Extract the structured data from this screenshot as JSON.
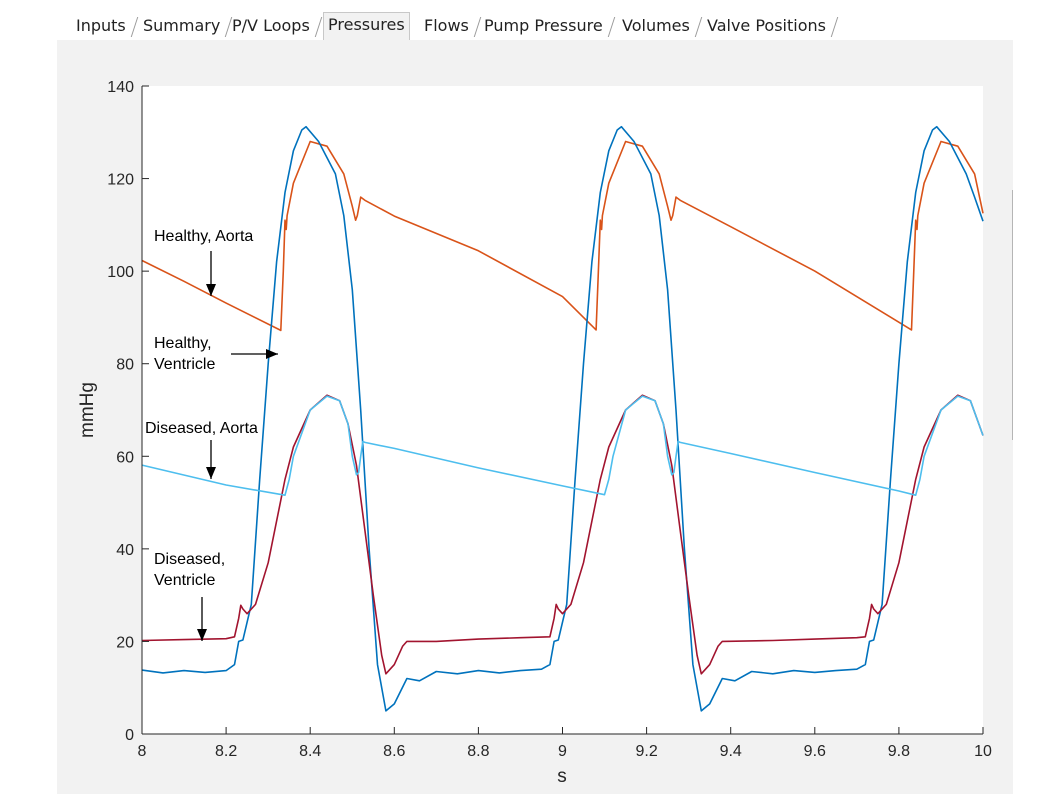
{
  "tabs": [
    {
      "label": "Inputs",
      "active": false
    },
    {
      "label": "Summary",
      "active": false
    },
    {
      "label": "P/V Loops",
      "active": false
    },
    {
      "label": "Pressures",
      "active": true
    },
    {
      "label": "Flows",
      "active": false
    },
    {
      "label": "Pump Pressure",
      "active": false
    },
    {
      "label": "Volumes",
      "active": false
    },
    {
      "label": "Valve Positions",
      "active": false
    }
  ],
  "chart_data": {
    "type": "line",
    "xlabel": "s",
    "ylabel": "mmHg",
    "xlim": [
      8,
      10
    ],
    "ylim": [
      0,
      140
    ],
    "xticks": [
      8,
      8.2,
      8.4,
      8.6,
      8.8,
      9,
      9.2,
      9.4,
      9.6,
      9.8,
      10
    ],
    "xtick_labels": [
      "8",
      "8.2",
      "8.4",
      "8.6",
      "8.8",
      "9",
      "9.2",
      "9.4",
      "9.6",
      "9.8",
      "10"
    ],
    "yticks": [
      0,
      20,
      40,
      60,
      80,
      100,
      120,
      140
    ],
    "ytick_labels": [
      "0",
      "20",
      "40",
      "60",
      "80",
      "100",
      "120",
      "140"
    ],
    "grid": false,
    "series": [
      {
        "key": "healthy_aorta",
        "color": "#d95319",
        "points": [
          [
            8.0,
            102.3
          ],
          [
            8.1,
            97.8
          ],
          [
            8.2,
            93.1
          ],
          [
            8.33,
            87.2
          ],
          [
            8.336,
            100
          ],
          [
            8.34,
            111
          ],
          [
            8.343,
            109
          ],
          [
            8.345,
            112
          ],
          [
            8.36,
            119
          ],
          [
            8.4,
            128
          ],
          [
            8.44,
            127
          ],
          [
            8.48,
            121
          ],
          [
            8.5,
            114
          ],
          [
            8.508,
            111
          ],
          [
            8.512,
            112
          ],
          [
            8.52,
            116
          ],
          [
            8.53,
            115.3
          ],
          [
            8.6,
            111.9
          ],
          [
            8.8,
            104.4
          ],
          [
            9.0,
            94.5
          ],
          [
            9.08,
            87.3
          ],
          [
            9.085,
            99
          ],
          [
            9.09,
            111
          ],
          [
            9.093,
            109
          ],
          [
            9.095,
            112
          ],
          [
            9.11,
            119
          ],
          [
            9.15,
            128
          ],
          [
            9.19,
            127
          ],
          [
            9.23,
            121
          ],
          [
            9.25,
            114
          ],
          [
            9.258,
            111
          ],
          [
            9.262,
            112
          ],
          [
            9.27,
            116
          ],
          [
            9.28,
            115.3
          ],
          [
            9.4,
            109.6
          ],
          [
            9.6,
            100
          ],
          [
            9.83,
            87.3
          ],
          [
            9.835,
            99
          ],
          [
            9.84,
            111
          ],
          [
            9.843,
            109
          ],
          [
            9.845,
            112
          ],
          [
            9.86,
            119
          ],
          [
            9.9,
            128
          ],
          [
            9.94,
            127
          ],
          [
            9.98,
            121
          ],
          [
            10.0,
            112.5
          ]
        ]
      },
      {
        "key": "healthy_ventricle",
        "color": "#0072bd",
        "points": [
          [
            8.0,
            13.8
          ],
          [
            8.05,
            13.2
          ],
          [
            8.1,
            13.7
          ],
          [
            8.15,
            13.3
          ],
          [
            8.2,
            13.7
          ],
          [
            8.22,
            15
          ],
          [
            8.23,
            20
          ],
          [
            8.24,
            20.3
          ],
          [
            8.26,
            28
          ],
          [
            8.28,
            55
          ],
          [
            8.3,
            80
          ],
          [
            8.32,
            102
          ],
          [
            8.34,
            117
          ],
          [
            8.36,
            126
          ],
          [
            8.38,
            130.5
          ],
          [
            8.39,
            131.2
          ],
          [
            8.42,
            128
          ],
          [
            8.46,
            121
          ],
          [
            8.48,
            112
          ],
          [
            8.5,
            96
          ],
          [
            8.52,
            70
          ],
          [
            8.54,
            40
          ],
          [
            8.56,
            15
          ],
          [
            8.58,
            5
          ],
          [
            8.6,
            6.5
          ],
          [
            8.63,
            12
          ],
          [
            8.66,
            11.5
          ],
          [
            8.7,
            13.5
          ],
          [
            8.75,
            13
          ],
          [
            8.8,
            13.7
          ],
          [
            8.85,
            13.2
          ],
          [
            8.9,
            13.7
          ],
          [
            8.95,
            14
          ],
          [
            8.97,
            15
          ],
          [
            8.98,
            20
          ],
          [
            8.99,
            20.3
          ],
          [
            9.01,
            28
          ],
          [
            9.03,
            55
          ],
          [
            9.05,
            80
          ],
          [
            9.07,
            102
          ],
          [
            9.09,
            117
          ],
          [
            9.11,
            126
          ],
          [
            9.13,
            130.5
          ],
          [
            9.14,
            131.2
          ],
          [
            9.17,
            128
          ],
          [
            9.21,
            121
          ],
          [
            9.23,
            112
          ],
          [
            9.25,
            96
          ],
          [
            9.27,
            70
          ],
          [
            9.29,
            40
          ],
          [
            9.31,
            15
          ],
          [
            9.33,
            5
          ],
          [
            9.35,
            6.5
          ],
          [
            9.38,
            12
          ],
          [
            9.41,
            11.5
          ],
          [
            9.45,
            13.5
          ],
          [
            9.5,
            13
          ],
          [
            9.55,
            13.7
          ],
          [
            9.6,
            13.3
          ],
          [
            9.65,
            13.7
          ],
          [
            9.7,
            14
          ],
          [
            9.72,
            15
          ],
          [
            9.73,
            20
          ],
          [
            9.74,
            20.3
          ],
          [
            9.76,
            28
          ],
          [
            9.78,
            55
          ],
          [
            9.8,
            80
          ],
          [
            9.82,
            102
          ],
          [
            9.84,
            117
          ],
          [
            9.86,
            126
          ],
          [
            9.88,
            130.5
          ],
          [
            9.89,
            131.2
          ],
          [
            9.92,
            128
          ],
          [
            9.96,
            121
          ],
          [
            9.98,
            116
          ],
          [
            10.0,
            110.8
          ]
        ]
      },
      {
        "key": "diseased_ventricle",
        "color": "#a2142f",
        "points": [
          [
            8.0,
            20.2
          ],
          [
            8.1,
            20.4
          ],
          [
            8.2,
            20.6
          ],
          [
            8.22,
            21
          ],
          [
            8.23,
            25
          ],
          [
            8.235,
            27.8
          ],
          [
            8.24,
            27
          ],
          [
            8.25,
            26
          ],
          [
            8.27,
            28
          ],
          [
            8.3,
            37
          ],
          [
            8.34,
            55
          ],
          [
            8.36,
            62
          ],
          [
            8.4,
            70
          ],
          [
            8.44,
            73.2
          ],
          [
            8.47,
            72
          ],
          [
            8.49,
            67
          ],
          [
            8.51,
            58
          ],
          [
            8.53,
            44
          ],
          [
            8.55,
            30
          ],
          [
            8.57,
            17
          ],
          [
            8.58,
            13
          ],
          [
            8.6,
            15
          ],
          [
            8.62,
            19
          ],
          [
            8.63,
            20
          ],
          [
            8.7,
            20
          ],
          [
            8.8,
            20.5
          ],
          [
            8.9,
            20.8
          ],
          [
            8.97,
            21
          ],
          [
            8.98,
            25
          ],
          [
            8.985,
            28
          ],
          [
            8.99,
            27
          ],
          [
            9.0,
            26
          ],
          [
            9.02,
            28
          ],
          [
            9.05,
            37
          ],
          [
            9.09,
            55
          ],
          [
            9.11,
            62
          ],
          [
            9.15,
            70
          ],
          [
            9.19,
            73.2
          ],
          [
            9.22,
            72
          ],
          [
            9.24,
            67
          ],
          [
            9.26,
            58
          ],
          [
            9.28,
            44
          ],
          [
            9.3,
            30
          ],
          [
            9.32,
            17
          ],
          [
            9.33,
            13
          ],
          [
            9.35,
            15
          ],
          [
            9.37,
            19
          ],
          [
            9.38,
            20
          ],
          [
            9.5,
            20.2
          ],
          [
            9.6,
            20.5
          ],
          [
            9.7,
            20.8
          ],
          [
            9.72,
            21
          ],
          [
            9.73,
            25
          ],
          [
            9.735,
            28
          ],
          [
            9.74,
            27
          ],
          [
            9.75,
            26
          ],
          [
            9.77,
            28
          ],
          [
            9.8,
            37
          ],
          [
            9.84,
            55
          ],
          [
            9.86,
            62
          ],
          [
            9.9,
            70
          ],
          [
            9.94,
            73.2
          ],
          [
            9.97,
            72
          ],
          [
            9.99,
            67
          ],
          [
            10.0,
            64.5
          ]
        ]
      },
      {
        "key": "diseased_aorta",
        "color": "#4dbeee",
        "points": [
          [
            8.0,
            58.1
          ],
          [
            8.2,
            53.8
          ],
          [
            8.34,
            51.6
          ],
          [
            8.35,
            55
          ],
          [
            8.36,
            60
          ],
          [
            8.4,
            70
          ],
          [
            8.44,
            73
          ],
          [
            8.47,
            72
          ],
          [
            8.49,
            67
          ],
          [
            8.5,
            60
          ],
          [
            8.51,
            56
          ],
          [
            8.515,
            56.5
          ],
          [
            8.52,
            60
          ],
          [
            8.525,
            63.2
          ],
          [
            8.53,
            63
          ],
          [
            8.6,
            61.7
          ],
          [
            8.8,
            57.5
          ],
          [
            9.0,
            53.6
          ],
          [
            9.1,
            51.7
          ],
          [
            9.11,
            55
          ],
          [
            9.12,
            60
          ],
          [
            9.15,
            70
          ],
          [
            9.19,
            73
          ],
          [
            9.22,
            72
          ],
          [
            9.24,
            67
          ],
          [
            9.25,
            60
          ],
          [
            9.26,
            56
          ],
          [
            9.265,
            56.5
          ],
          [
            9.27,
            60
          ],
          [
            9.275,
            63.2
          ],
          [
            9.28,
            63
          ],
          [
            9.4,
            60.6
          ],
          [
            9.6,
            56.5
          ],
          [
            9.8,
            52.5
          ],
          [
            9.84,
            51.6
          ],
          [
            9.85,
            55
          ],
          [
            9.86,
            60
          ],
          [
            9.9,
            70
          ],
          [
            9.94,
            73
          ],
          [
            9.97,
            72
          ],
          [
            9.99,
            67
          ],
          [
            10.0,
            64.5
          ]
        ]
      }
    ],
    "annotations": [
      {
        "lines": [
          "Healthy, Aorta"
        ],
        "arrow": "down"
      },
      {
        "lines": [
          "Healthy,",
          "Ventricle"
        ],
        "arrow": "right"
      },
      {
        "lines": [
          "Diseased, Aorta"
        ],
        "arrow": "down"
      },
      {
        "lines": [
          "Diseased,",
          "Ventricle"
        ],
        "arrow": "down"
      }
    ]
  }
}
